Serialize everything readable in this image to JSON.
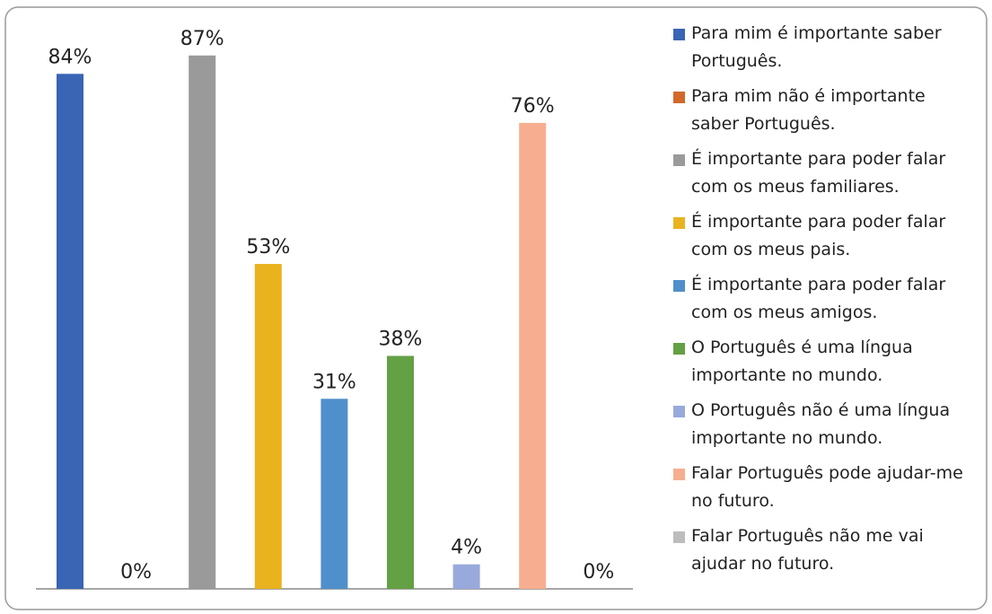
{
  "chart_data": {
    "type": "bar",
    "series": [
      {
        "name": "Para mim é importante saber Português.",
        "color": "#3a64b4",
        "values": [
          84
        ],
        "value_labels": [
          "84%"
        ]
      },
      {
        "name": "Para mim não é importante saber Português.",
        "color": "#d2692a",
        "values": [
          0
        ],
        "value_labels": [
          "0%"
        ]
      },
      {
        "name": "É importante para poder falar com os meus familiares.",
        "color": "#9a9a9a",
        "values": [
          87
        ],
        "value_labels": [
          "87%"
        ]
      },
      {
        "name": "É importante para poder falar com os meus pais.",
        "color": "#e9b31f",
        "values": [
          53
        ],
        "value_labels": [
          "53%"
        ]
      },
      {
        "name": "É importante para poder falar com os meus amigos.",
        "color": "#4f8fcb",
        "values": [
          31
        ],
        "value_labels": [
          "31%"
        ]
      },
      {
        "name": "O Português é uma língua importante no mundo.",
        "color": "#64a044",
        "values": [
          38
        ],
        "value_labels": [
          "38%"
        ]
      },
      {
        "name": "O Português não é uma língua importante no mundo.",
        "color": "#98a9db",
        "values": [
          4
        ],
        "value_labels": [
          "4%"
        ]
      },
      {
        "name": "Falar Português pode ajudar-me no futuro.",
        "color": "#f7ae90",
        "values": [
          76
        ],
        "value_labels": [
          "76%"
        ]
      },
      {
        "name": "Falar Português não me vai ajudar no futuro.",
        "color": "#bdbdbd",
        "values": [
          0
        ],
        "value_labels": [
          "0%"
        ]
      }
    ]
  }
}
